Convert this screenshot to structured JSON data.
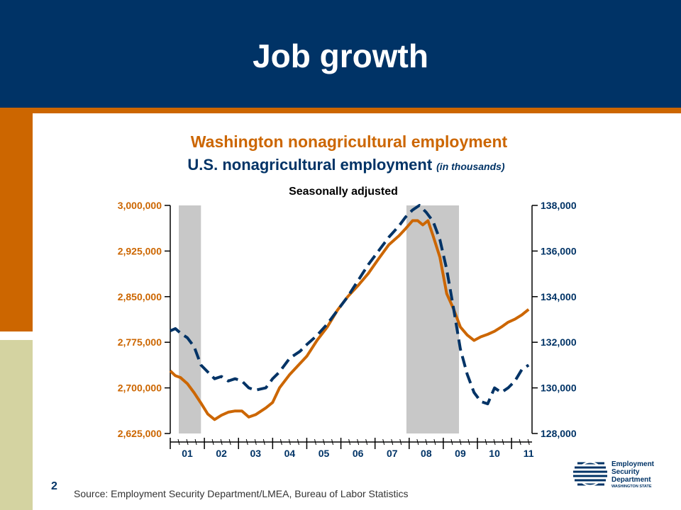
{
  "slide": {
    "title": "Job growth",
    "page_number": "2",
    "source": "Source: Employment Security Department/LMEA, Bureau of Labor Statistics"
  },
  "logo": {
    "line1": "Employment",
    "line2": "Security",
    "line3": "Department",
    "line4": "WASHINGTON STATE"
  },
  "colors": {
    "navy": "#003366",
    "orange": "#CC6600",
    "tan": "#D4D3A1",
    "recession": "#C8C8C8"
  },
  "chart_data": {
    "type": "line",
    "title": "Washington nonagricultural employment",
    "title2": "U.S. nonagricultural employment",
    "title2_note": "(in thousands)",
    "subtitle": "Seasonally adjusted",
    "x_categories": [
      "01",
      "02",
      "03",
      "04",
      "05",
      "06",
      "07",
      "08",
      "09",
      "10",
      "11"
    ],
    "x_range": [
      2001.0,
      2011.6
    ],
    "y_left": {
      "min": 2625000,
      "max": 3000000,
      "ticks": [
        3000000,
        2925000,
        2850000,
        2775000,
        2700000,
        2625000
      ],
      "tick_labels": [
        "3,000,000",
        "2,925,000",
        "2,850,000",
        "2,775,000",
        "2,700,000",
        "2,625,000"
      ]
    },
    "y_right": {
      "min": 128000,
      "max": 138000,
      "ticks": [
        138000,
        136000,
        134000,
        132000,
        130000,
        128000
      ],
      "tick_labels": [
        "138,000",
        "136,000",
        "134,000",
        "132,000",
        "130,000",
        "128,000"
      ]
    },
    "recessions": [
      [
        2001.25,
        2001.9
      ],
      [
        2007.92,
        2009.46
      ]
    ],
    "series": [
      {
        "axis": "left",
        "style": "solid",
        "color": "#CC6600",
        "x": [
          2001.0,
          2001.15,
          2001.3,
          2001.5,
          2001.7,
          2001.9,
          2002.1,
          2002.3,
          2002.5,
          2002.7,
          2002.9,
          2003.1,
          2003.3,
          2003.5,
          2003.8,
          2004.0,
          2004.2,
          2004.5,
          2004.8,
          2005.0,
          2005.3,
          2005.6,
          2005.9,
          2006.2,
          2006.5,
          2006.8,
          2007.1,
          2007.4,
          2007.7,
          2007.9,
          2008.1,
          2008.25,
          2008.4,
          2008.55,
          2008.7,
          2008.9,
          2009.1,
          2009.3,
          2009.5,
          2009.7,
          2009.9,
          2010.1,
          2010.3,
          2010.5,
          2010.7,
          2010.9,
          2011.1,
          2011.3,
          2011.5
        ],
        "y": [
          2728000,
          2720000,
          2717000,
          2707000,
          2692000,
          2675000,
          2657000,
          2648000,
          2655000,
          2660000,
          2662000,
          2662000,
          2652000,
          2656000,
          2667000,
          2676000,
          2700000,
          2722000,
          2740000,
          2752000,
          2778000,
          2800000,
          2828000,
          2850000,
          2868000,
          2888000,
          2912000,
          2935000,
          2950000,
          2962000,
          2975000,
          2975000,
          2968000,
          2975000,
          2950000,
          2915000,
          2855000,
          2830000,
          2800000,
          2787000,
          2778000,
          2784000,
          2788000,
          2793000,
          2800000,
          2808000,
          2813000,
          2820000,
          2829000
        ]
      },
      {
        "axis": "right",
        "style": "dashed",
        "color": "#003366",
        "x": [
          2001.0,
          2001.15,
          2001.3,
          2001.5,
          2001.7,
          2001.9,
          2002.1,
          2002.3,
          2002.5,
          2002.7,
          2002.9,
          2003.1,
          2003.3,
          2003.5,
          2003.8,
          2004.0,
          2004.2,
          2004.5,
          2004.8,
          2005.0,
          2005.3,
          2005.6,
          2005.9,
          2006.2,
          2006.5,
          2006.8,
          2007.1,
          2007.4,
          2007.7,
          2007.9,
          2008.1,
          2008.3,
          2008.5,
          2008.7,
          2008.9,
          2009.1,
          2009.3,
          2009.5,
          2009.7,
          2009.9,
          2010.1,
          2010.3,
          2010.5,
          2010.7,
          2010.9,
          2011.1,
          2011.3,
          2011.5
        ],
        "y": [
          132500,
          132600,
          132400,
          132200,
          131800,
          131000,
          130700,
          130400,
          130500,
          130300,
          130400,
          130300,
          130000,
          129900,
          130000,
          130400,
          130700,
          131300,
          131600,
          131900,
          132300,
          132800,
          133400,
          134000,
          134700,
          135400,
          136000,
          136600,
          137100,
          137500,
          137800,
          138000,
          137700,
          137300,
          136500,
          135200,
          133500,
          131700,
          130600,
          129800,
          129400,
          129300,
          130000,
          129800,
          130000,
          130300,
          130800,
          131000
        ]
      }
    ]
  }
}
